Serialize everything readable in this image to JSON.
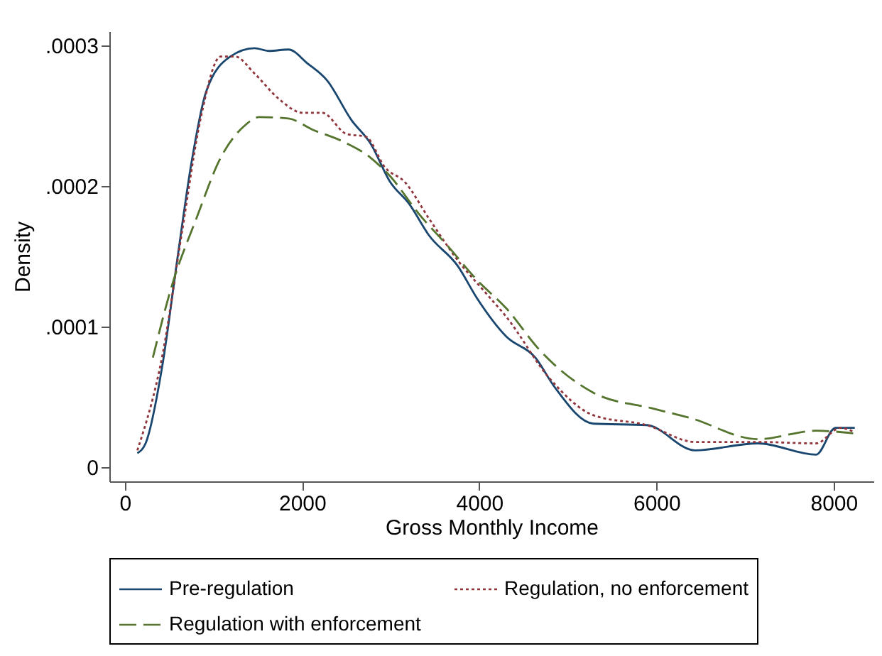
{
  "chart_data": {
    "type": "line",
    "xlabel": "Gross Monthly Income",
    "ylabel": "Density",
    "xlim": [
      -175,
      8450
    ],
    "ylim": [
      -1e-05,
      0.00031
    ],
    "xticks": [
      0,
      2000,
      4000,
      6000,
      8000
    ],
    "yticks": [
      0,
      {
        "value": 0.0001,
        "label": ".0001"
      },
      {
        "value": 0.0002,
        "label": ".0002"
      },
      {
        "value": 0.0003,
        "label": ".0003"
      }
    ],
    "grid": false,
    "legend": "bottom",
    "marker": "none",
    "series": [
      {
        "name": "Pre-regulation",
        "color": "#1a476f",
        "line_style": "solid",
        "x": [
          141,
          234,
          425,
          590,
          753,
          917,
          1190,
          1463,
          1627,
          1846,
          2064,
          2283,
          2556,
          2775,
          2993,
          3212,
          3431,
          3759,
          3977,
          4305,
          4633,
          4851,
          5289,
          5890,
          6436,
          7146,
          7802,
          8021,
          8239
        ],
        "values": [
          1e-05,
          1.7e-05,
          7.3e-05,
          0.000147,
          0.000217,
          0.000267,
          0.000292,
          0.000298,
          0.000296,
          0.000297,
          0.000287,
          0.000275,
          0.000247,
          0.00023,
          0.000203,
          0.000187,
          0.000165,
          0.000143,
          0.00012,
          9.3e-05,
          7.8e-05,
          5.7e-05,
          3.1e-05,
          3e-05,
          1.2e-05,
          1.7e-05,
          9e-06,
          2.8e-05,
          2.8e-05
        ]
      },
      {
        "name": "Regulation, no enforcement",
        "color": "#90353b",
        "line_style": "dotted",
        "x": [
          141,
          425,
          644,
          862,
          1081,
          1245,
          1463,
          1736,
          2009,
          2228,
          2501,
          2720,
          2938,
          3157,
          3431,
          3759,
          4087,
          4305,
          4797,
          5289,
          5890,
          6436,
          7146,
          7802,
          8075,
          8239
        ],
        "values": [
          1.2e-05,
          8e-05,
          0.000167,
          0.00025,
          0.000292,
          0.000292,
          0.00028,
          0.000262,
          0.000252,
          0.000252,
          0.000237,
          0.000235,
          0.000213,
          0.000203,
          0.000177,
          0.000147,
          0.000123,
          0.000107,
          6.3e-05,
          3.7e-05,
          3e-05,
          1.8e-05,
          1.8e-05,
          1.7e-05,
          2.8e-05,
          2.5e-05
        ]
      },
      {
        "name": "Regulation with enforcement",
        "color": "#55752f",
        "line_style": "dashed",
        "x": [
          316,
          535,
          808,
          1081,
          1354,
          1518,
          1846,
          2119,
          2447,
          2775,
          2993,
          3321,
          3649,
          3977,
          4305,
          4687,
          5289,
          5944,
          6382,
          7146,
          7802,
          8239
        ],
        "values": [
          7.8e-05,
          0.00013,
          0.000177,
          0.00022,
          0.000243,
          0.000249,
          0.000248,
          0.00024,
          0.000232,
          0.00022,
          0.000207,
          0.00018,
          0.000157,
          0.000133,
          0.000113,
          8.3e-05,
          5.3e-05,
          4.2e-05,
          3.5e-05,
          2e-05,
          2.6e-05,
          2.4e-05
        ]
      }
    ]
  }
}
